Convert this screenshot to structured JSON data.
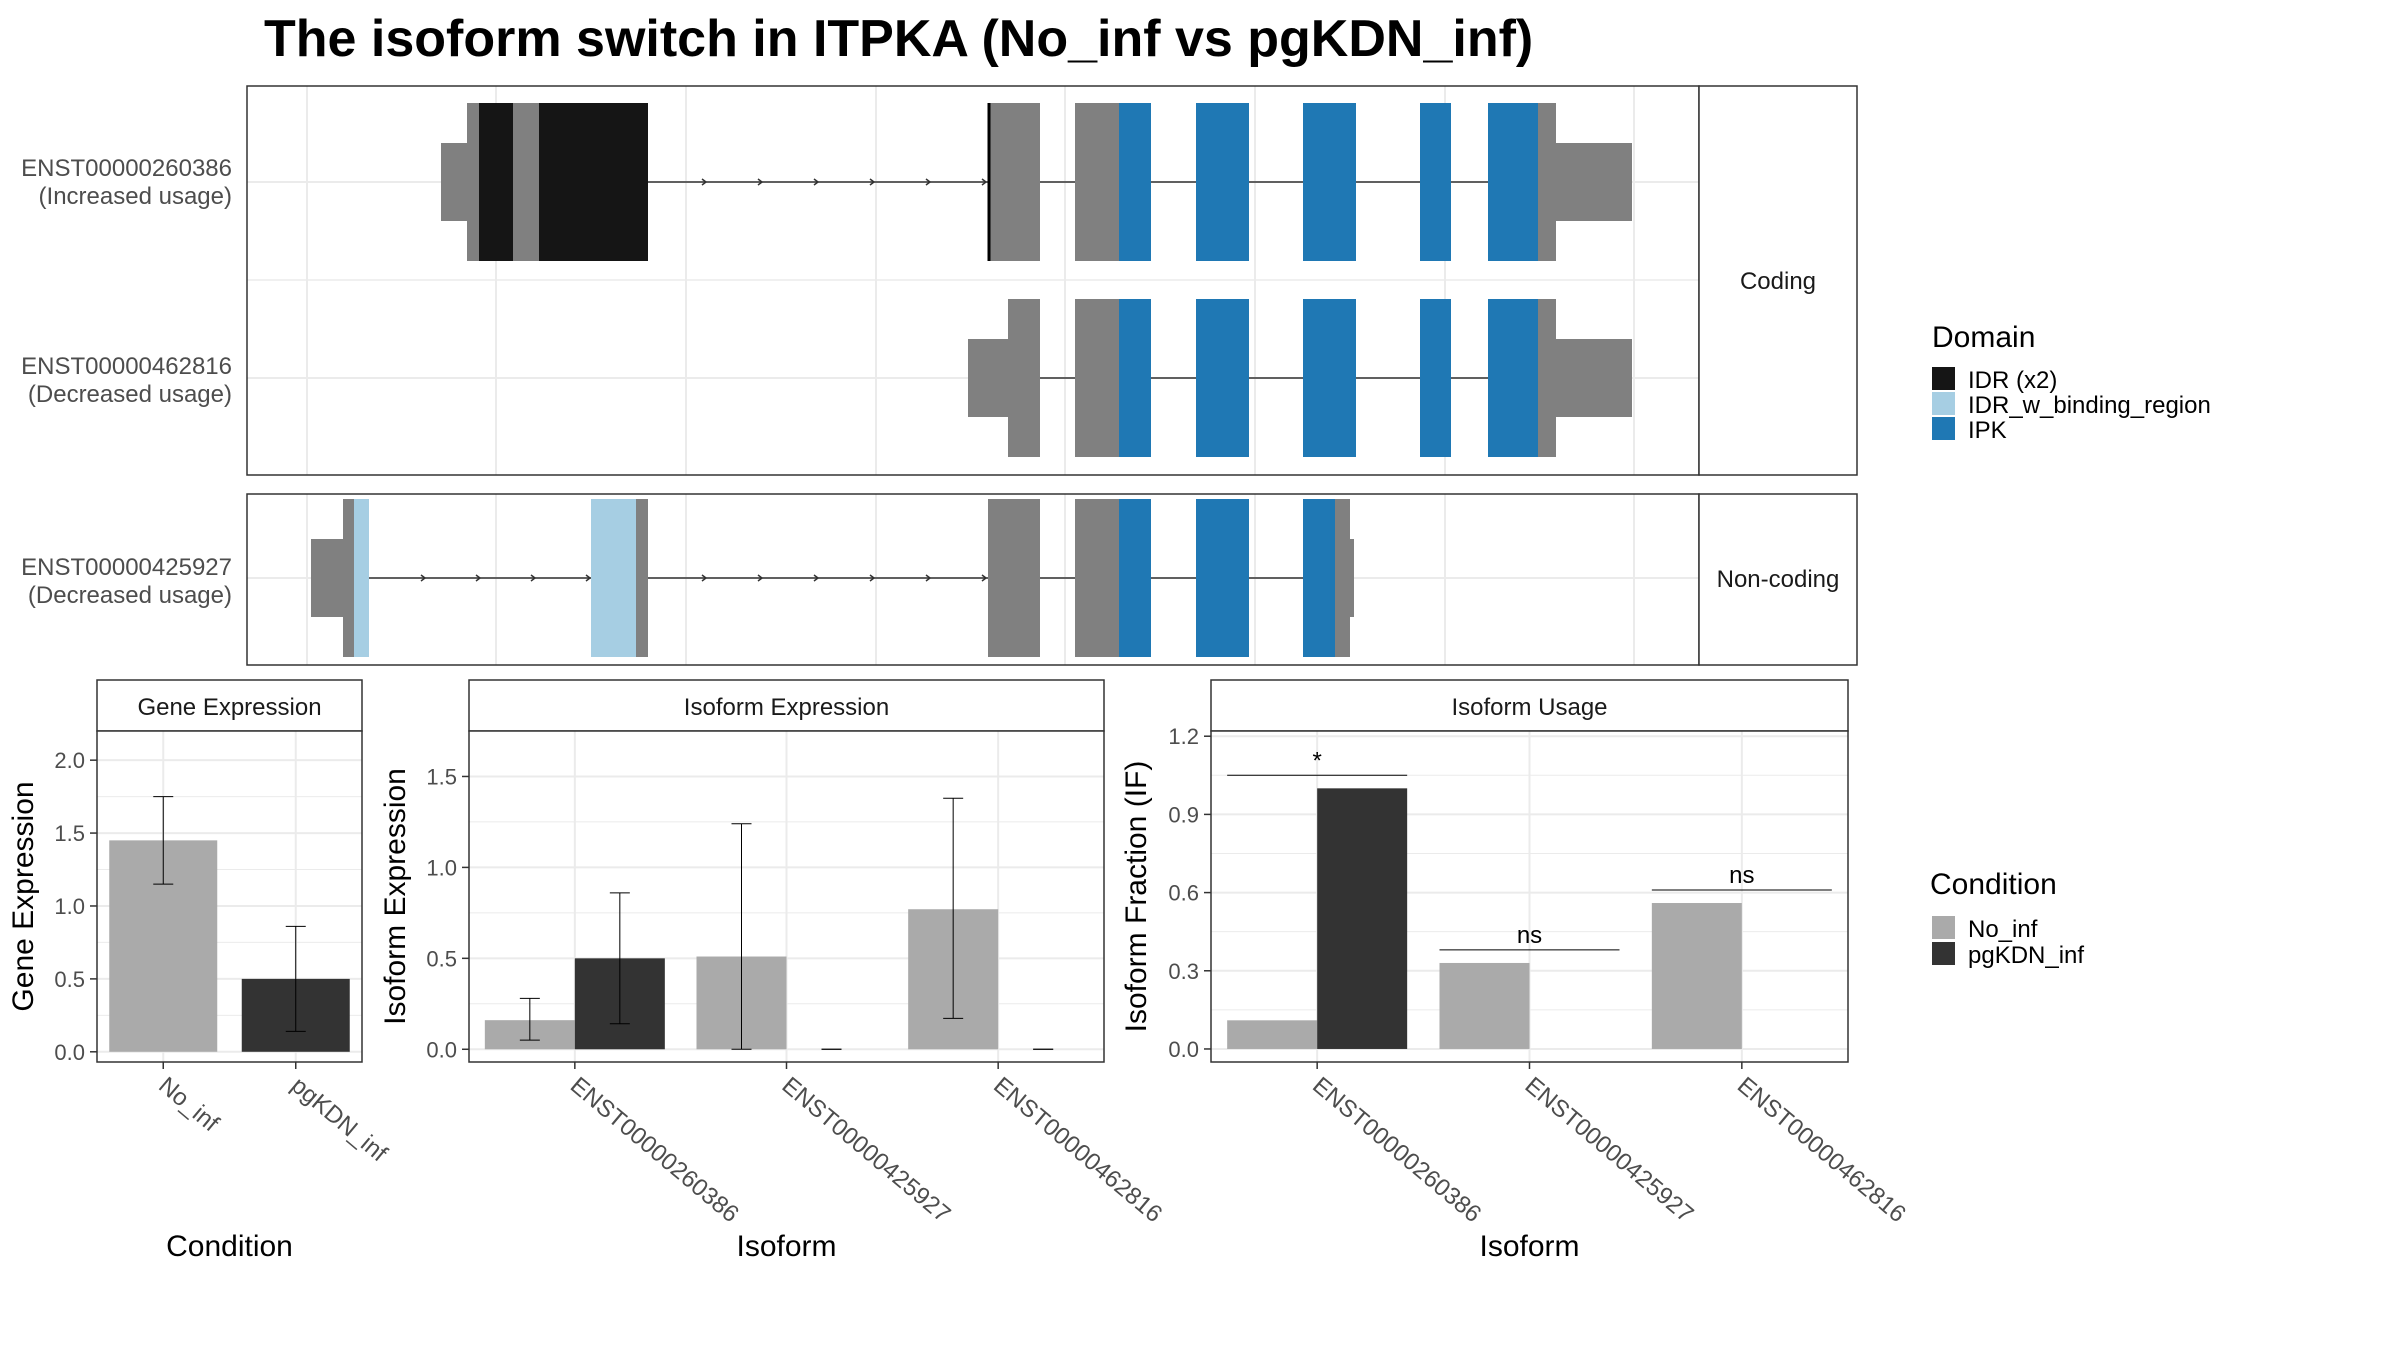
{
  "title": "The isoform switch in ITPKA (No_inf vs pgKDN_inf)",
  "colors": {
    "utr": "#808080",
    "idr": "#151515",
    "idr_binding": "#a6cee3",
    "ipk": "#1f78b4",
    "no_inf": "#aaaaaa",
    "pgkdn_inf": "#333333",
    "grid": "#ebebeb",
    "border": "#333333"
  },
  "structure": {
    "strips": [
      "Coding",
      "Non-coding"
    ],
    "isoforms": [
      {
        "id": "ENST00000260386",
        "label": "ENST00000260386",
        "sub": "(Increased usage)",
        "group": "Coding"
      },
      {
        "id": "ENST00000462816",
        "label": "ENST00000462816",
        "sub": "(Decreased usage)",
        "group": "Coding"
      },
      {
        "id": "ENST00000425927",
        "label": "ENST00000425927",
        "sub": "(Decreased usage)",
        "group": "Non-coding"
      }
    ]
  },
  "legend_domain": {
    "title": "Domain",
    "items": [
      {
        "label": "IDR (x2)",
        "color": "#151515"
      },
      {
        "label": "IDR_w_binding_region",
        "color": "#a6cee3"
      },
      {
        "label": "IPK",
        "color": "#1f78b4"
      }
    ]
  },
  "legend_condition": {
    "title": "Condition",
    "items": [
      {
        "label": "No_inf",
        "color": "#aaaaaa"
      },
      {
        "label": "pgKDN_inf",
        "color": "#333333"
      }
    ]
  },
  "chart_data": [
    {
      "type": "bar",
      "panel": "Gene Expression",
      "xlabel": "Condition",
      "ylabel": "Gene Expression",
      "categories": [
        "No_inf",
        "pgKDN_inf"
      ],
      "values": [
        1.45,
        0.5
      ],
      "error_low": [
        1.15,
        0.14
      ],
      "error_high": [
        1.75,
        0.86
      ],
      "ylim": [
        -0.07,
        2.2
      ],
      "yticks": [
        0.0,
        0.5,
        1.0,
        1.5,
        2.0
      ],
      "ytick_labels": [
        "0.0",
        "0.5",
        "1.0",
        "1.5",
        "2.0"
      ]
    },
    {
      "type": "bar",
      "panel": "Isoform Expression",
      "xlabel": "Isoform",
      "ylabel": "Isoform Expression",
      "categories": [
        "ENST00000260386",
        "ENST00000425927",
        "ENST00000462816"
      ],
      "series": [
        {
          "name": "No_inf",
          "values": [
            0.16,
            0.51,
            0.77
          ],
          "error_low": [
            0.05,
            0.0,
            0.17
          ],
          "error_high": [
            0.28,
            1.24,
            1.38
          ]
        },
        {
          "name": "pgKDN_inf",
          "values": [
            0.5,
            0.0,
            0.0
          ],
          "error_low": [
            0.14,
            0.0,
            0.0
          ],
          "error_high": [
            0.86,
            0.0,
            0.0
          ]
        }
      ],
      "ylim": [
        -0.07,
        1.75
      ],
      "yticks": [
        0.0,
        0.5,
        1.0,
        1.5
      ],
      "ytick_labels": [
        "0.0",
        "0.5",
        "1.0",
        "1.5"
      ]
    },
    {
      "type": "bar",
      "panel": "Isoform Usage",
      "xlabel": "Isoform",
      "ylabel": "Isoform Fraction (IF)",
      "categories": [
        "ENST00000260386",
        "ENST00000425927",
        "ENST00000462816"
      ],
      "series": [
        {
          "name": "No_inf",
          "values": [
            0.11,
            0.33,
            0.56
          ]
        },
        {
          "name": "pgKDN_inf",
          "values": [
            1.0,
            0.0,
            0.0
          ]
        }
      ],
      "significance": [
        {
          "category": "ENST00000260386",
          "label": "*",
          "y": 1.05
        },
        {
          "category": "ENST00000425927",
          "label": "ns",
          "y": 0.38
        },
        {
          "category": "ENST00000462816",
          "label": "ns",
          "y": 0.61
        }
      ],
      "ylim": [
        -0.05,
        1.22
      ],
      "yticks": [
        0.0,
        0.3,
        0.6,
        0.9,
        1.2
      ],
      "ytick_labels": [
        "0.0",
        "0.3",
        "0.6",
        "0.9",
        "1.2"
      ]
    }
  ]
}
